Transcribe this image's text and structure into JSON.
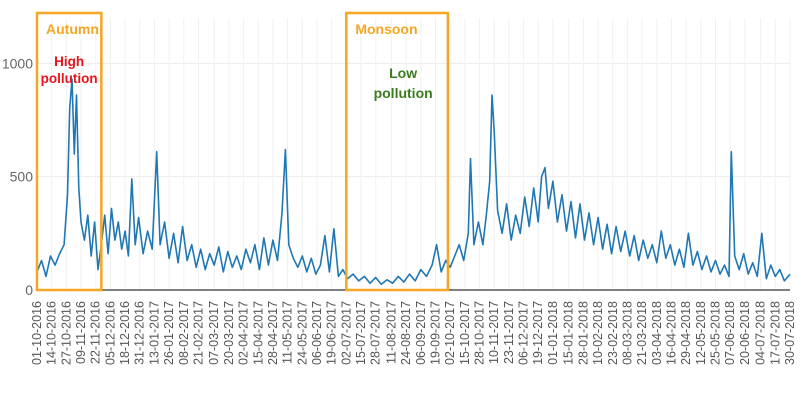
{
  "chart_data": {
    "type": "line",
    "xlabel": "",
    "ylabel": "",
    "ylim": [
      0,
      1200
    ],
    "yticks": [
      0,
      500,
      1000
    ],
    "ytick_labels": [
      "0",
      "500",
      "1000"
    ],
    "grid": true,
    "line_color": "#1f77b4",
    "x_start": "01-10-2016",
    "x_end": "30-07-2018",
    "x_tick_labels": [
      "01-10-2016",
      "14-10-2016",
      "27-10-2016",
      "09-11-2016",
      "22-11-2016",
      "05-12-2016",
      "18-12-2016",
      "31-12-2016",
      "13-01-2017",
      "26-01-2017",
      "08-02-2017",
      "21-02-2017",
      "07-03-2017",
      "20-03-2017",
      "02-04-2017",
      "15-04-2017",
      "28-04-2017",
      "11-05-2017",
      "24-05-2017",
      "06-06-2017",
      "19-06-2017",
      "02-07-2017",
      "15-07-2017",
      "28-07-2017",
      "11-08-2017",
      "24-08-2017",
      "06-09-2017",
      "19-09-2017",
      "02-10-2017",
      "15-10-2017",
      "28-10-2017",
      "10-11-2017",
      "23-11-2017",
      "06-12-2017",
      "19-12-2017",
      "01-01-2018",
      "15-01-2018",
      "28-01-2018",
      "10-02-2018",
      "23-02-2018",
      "08-03-2018",
      "21-03-2018",
      "03-04-2018",
      "16-04-2018",
      "29-04-2018",
      "12-05-2018",
      "25-05-2018",
      "07-06-2018",
      "20-06-2018",
      "04-07-2018",
      "17-07-2018",
      "30-07-2018"
    ],
    "series": [
      {
        "values": [
          {
            "x": "01-10-2016",
            "y": 80
          },
          {
            "x": "05-10-2016",
            "y": 130
          },
          {
            "x": "09-10-2016",
            "y": 60
          },
          {
            "x": "13-10-2016",
            "y": 150
          },
          {
            "x": "17-10-2016",
            "y": 110
          },
          {
            "x": "21-10-2016",
            "y": 160
          },
          {
            "x": "25-10-2016",
            "y": 200
          },
          {
            "x": "28-10-2016",
            "y": 420
          },
          {
            "x": "30-10-2016",
            "y": 800
          },
          {
            "x": "01-11-2016",
            "y": 930
          },
          {
            "x": "03-11-2016",
            "y": 600
          },
          {
            "x": "05-11-2016",
            "y": 860
          },
          {
            "x": "07-11-2016",
            "y": 450
          },
          {
            "x": "09-11-2016",
            "y": 300
          },
          {
            "x": "12-11-2016",
            "y": 220
          },
          {
            "x": "15-11-2016",
            "y": 330
          },
          {
            "x": "18-11-2016",
            "y": 150
          },
          {
            "x": "21-11-2016",
            "y": 300
          },
          {
            "x": "24-11-2016",
            "y": 90
          },
          {
            "x": "27-11-2016",
            "y": 200
          },
          {
            "x": "30-11-2016",
            "y": 330
          },
          {
            "x": "03-12-2016",
            "y": 160
          },
          {
            "x": "06-12-2016",
            "y": 360
          },
          {
            "x": "09-12-2016",
            "y": 220
          },
          {
            "x": "12-12-2016",
            "y": 300
          },
          {
            "x": "15-12-2016",
            "y": 180
          },
          {
            "x": "18-12-2016",
            "y": 260
          },
          {
            "x": "21-12-2016",
            "y": 150
          },
          {
            "x": "24-12-2016",
            "y": 490
          },
          {
            "x": "27-12-2016",
            "y": 200
          },
          {
            "x": "30-12-2016",
            "y": 320
          },
          {
            "x": "03-01-2017",
            "y": 160
          },
          {
            "x": "07-01-2017",
            "y": 260
          },
          {
            "x": "11-01-2017",
            "y": 180
          },
          {
            "x": "15-01-2017",
            "y": 610
          },
          {
            "x": "18-01-2017",
            "y": 200
          },
          {
            "x": "22-01-2017",
            "y": 300
          },
          {
            "x": "26-01-2017",
            "y": 140
          },
          {
            "x": "30-01-2017",
            "y": 250
          },
          {
            "x": "03-02-2017",
            "y": 120
          },
          {
            "x": "07-02-2017",
            "y": 280
          },
          {
            "x": "11-02-2017",
            "y": 130
          },
          {
            "x": "15-02-2017",
            "y": 200
          },
          {
            "x": "19-02-2017",
            "y": 100
          },
          {
            "x": "23-02-2017",
            "y": 180
          },
          {
            "x": "27-02-2017",
            "y": 90
          },
          {
            "x": "03-03-2017",
            "y": 160
          },
          {
            "x": "07-03-2017",
            "y": 110
          },
          {
            "x": "11-03-2017",
            "y": 190
          },
          {
            "x": "15-03-2017",
            "y": 80
          },
          {
            "x": "19-03-2017",
            "y": 170
          },
          {
            "x": "23-03-2017",
            "y": 100
          },
          {
            "x": "27-03-2017",
            "y": 150
          },
          {
            "x": "31-03-2017",
            "y": 90
          },
          {
            "x": "04-04-2017",
            "y": 180
          },
          {
            "x": "08-04-2017",
            "y": 120
          },
          {
            "x": "12-04-2017",
            "y": 200
          },
          {
            "x": "16-04-2017",
            "y": 90
          },
          {
            "x": "20-04-2017",
            "y": 230
          },
          {
            "x": "24-04-2017",
            "y": 110
          },
          {
            "x": "28-04-2017",
            "y": 220
          },
          {
            "x": "02-05-2017",
            "y": 130
          },
          {
            "x": "06-05-2017",
            "y": 340
          },
          {
            "x": "09-05-2017",
            "y": 620
          },
          {
            "x": "12-05-2017",
            "y": 200
          },
          {
            "x": "16-05-2017",
            "y": 140
          },
          {
            "x": "20-05-2017",
            "y": 100
          },
          {
            "x": "24-05-2017",
            "y": 150
          },
          {
            "x": "28-05-2017",
            "y": 80
          },
          {
            "x": "01-06-2017",
            "y": 140
          },
          {
            "x": "05-06-2017",
            "y": 70
          },
          {
            "x": "09-06-2017",
            "y": 110
          },
          {
            "x": "13-06-2017",
            "y": 240
          },
          {
            "x": "17-06-2017",
            "y": 80
          },
          {
            "x": "21-06-2017",
            "y": 270
          },
          {
            "x": "25-06-2017",
            "y": 60
          },
          {
            "x": "29-06-2017",
            "y": 90
          },
          {
            "x": "03-07-2017",
            "y": 50
          },
          {
            "x": "08-07-2017",
            "y": 70
          },
          {
            "x": "13-07-2017",
            "y": 40
          },
          {
            "x": "18-07-2017",
            "y": 60
          },
          {
            "x": "23-07-2017",
            "y": 30
          },
          {
            "x": "28-07-2017",
            "y": 55
          },
          {
            "x": "02-08-2017",
            "y": 25
          },
          {
            "x": "07-08-2017",
            "y": 45
          },
          {
            "x": "12-08-2017",
            "y": 30
          },
          {
            "x": "17-08-2017",
            "y": 60
          },
          {
            "x": "22-08-2017",
            "y": 35
          },
          {
            "x": "27-08-2017",
            "y": 70
          },
          {
            "x": "01-09-2017",
            "y": 40
          },
          {
            "x": "06-09-2017",
            "y": 90
          },
          {
            "x": "11-09-2017",
            "y": 60
          },
          {
            "x": "16-09-2017",
            "y": 110
          },
          {
            "x": "20-09-2017",
            "y": 200
          },
          {
            "x": "24-09-2017",
            "y": 80
          },
          {
            "x": "28-09-2017",
            "y": 130
          },
          {
            "x": "02-10-2017",
            "y": 100
          },
          {
            "x": "06-10-2017",
            "y": 150
          },
          {
            "x": "10-10-2017",
            "y": 200
          },
          {
            "x": "14-10-2017",
            "y": 130
          },
          {
            "x": "18-10-2017",
            "y": 250
          },
          {
            "x": "20-10-2017",
            "y": 580
          },
          {
            "x": "23-10-2017",
            "y": 200
          },
          {
            "x": "27-10-2017",
            "y": 300
          },
          {
            "x": "31-10-2017",
            "y": 200
          },
          {
            "x": "03-11-2017",
            "y": 330
          },
          {
            "x": "06-11-2017",
            "y": 480
          },
          {
            "x": "08-11-2017",
            "y": 860
          },
          {
            "x": "10-11-2017",
            "y": 700
          },
          {
            "x": "13-11-2017",
            "y": 350
          },
          {
            "x": "17-11-2017",
            "y": 250
          },
          {
            "x": "21-11-2017",
            "y": 380
          },
          {
            "x": "25-11-2017",
            "y": 220
          },
          {
            "x": "29-11-2017",
            "y": 330
          },
          {
            "x": "03-12-2017",
            "y": 250
          },
          {
            "x": "07-12-2017",
            "y": 410
          },
          {
            "x": "11-12-2017",
            "y": 280
          },
          {
            "x": "15-12-2017",
            "y": 450
          },
          {
            "x": "19-12-2017",
            "y": 300
          },
          {
            "x": "22-12-2017",
            "y": 500
          },
          {
            "x": "25-12-2017",
            "y": 540
          },
          {
            "x": "28-12-2017",
            "y": 360
          },
          {
            "x": "01-01-2018",
            "y": 480
          },
          {
            "x": "05-01-2018",
            "y": 300
          },
          {
            "x": "09-01-2018",
            "y": 420
          },
          {
            "x": "13-01-2018",
            "y": 260
          },
          {
            "x": "17-01-2018",
            "y": 390
          },
          {
            "x": "21-01-2018",
            "y": 230
          },
          {
            "x": "25-01-2018",
            "y": 380
          },
          {
            "x": "29-01-2018",
            "y": 220
          },
          {
            "x": "02-02-2018",
            "y": 340
          },
          {
            "x": "06-02-2018",
            "y": 200
          },
          {
            "x": "10-02-2018",
            "y": 320
          },
          {
            "x": "14-02-2018",
            "y": 180
          },
          {
            "x": "18-02-2018",
            "y": 290
          },
          {
            "x": "22-02-2018",
            "y": 160
          },
          {
            "x": "26-02-2018",
            "y": 280
          },
          {
            "x": "02-03-2018",
            "y": 170
          },
          {
            "x": "06-03-2018",
            "y": 260
          },
          {
            "x": "10-03-2018",
            "y": 150
          },
          {
            "x": "14-03-2018",
            "y": 240
          },
          {
            "x": "18-03-2018",
            "y": 130
          },
          {
            "x": "22-03-2018",
            "y": 220
          },
          {
            "x": "26-03-2018",
            "y": 140
          },
          {
            "x": "30-03-2018",
            "y": 200
          },
          {
            "x": "03-04-2018",
            "y": 120
          },
          {
            "x": "07-04-2018",
            "y": 260
          },
          {
            "x": "11-04-2018",
            "y": 140
          },
          {
            "x": "15-04-2018",
            "y": 200
          },
          {
            "x": "19-04-2018",
            "y": 110
          },
          {
            "x": "23-04-2018",
            "y": 180
          },
          {
            "x": "27-04-2018",
            "y": 100
          },
          {
            "x": "01-05-2018",
            "y": 250
          },
          {
            "x": "05-05-2018",
            "y": 110
          },
          {
            "x": "09-05-2018",
            "y": 170
          },
          {
            "x": "13-05-2018",
            "y": 90
          },
          {
            "x": "17-05-2018",
            "y": 150
          },
          {
            "x": "21-05-2018",
            "y": 80
          },
          {
            "x": "25-05-2018",
            "y": 130
          },
          {
            "x": "29-05-2018",
            "y": 70
          },
          {
            "x": "02-06-2018",
            "y": 110
          },
          {
            "x": "06-06-2018",
            "y": 60
          },
          {
            "x": "08-06-2018",
            "y": 610
          },
          {
            "x": "11-06-2018",
            "y": 150
          },
          {
            "x": "15-06-2018",
            "y": 90
          },
          {
            "x": "19-06-2018",
            "y": 160
          },
          {
            "x": "23-06-2018",
            "y": 70
          },
          {
            "x": "27-06-2018",
            "y": 120
          },
          {
            "x": "01-07-2018",
            "y": 60
          },
          {
            "x": "05-07-2018",
            "y": 250
          },
          {
            "x": "09-07-2018",
            "y": 50
          },
          {
            "x": "13-07-2018",
            "y": 110
          },
          {
            "x": "17-07-2018",
            "y": 60
          },
          {
            "x": "21-07-2018",
            "y": 90
          },
          {
            "x": "25-07-2018",
            "y": 40
          },
          {
            "x": "30-07-2018",
            "y": 70
          }
        ]
      }
    ],
    "annotations": [
      {
        "key": "autumn",
        "text": "Autumn",
        "color": "#f5a623",
        "from": "01-10-2016",
        "to": "27-11-2016"
      },
      {
        "key": "monsoon",
        "text": "Monsoon",
        "color": "#f5a623",
        "from": "02-07-2017",
        "to": "30-09-2017"
      },
      {
        "key": "high",
        "lines": [
          "High",
          "pollution"
        ],
        "color": "#e8131b"
      },
      {
        "key": "low",
        "lines": [
          "Low",
          "pollution"
        ],
        "color": "#3a7d1e"
      }
    ]
  }
}
